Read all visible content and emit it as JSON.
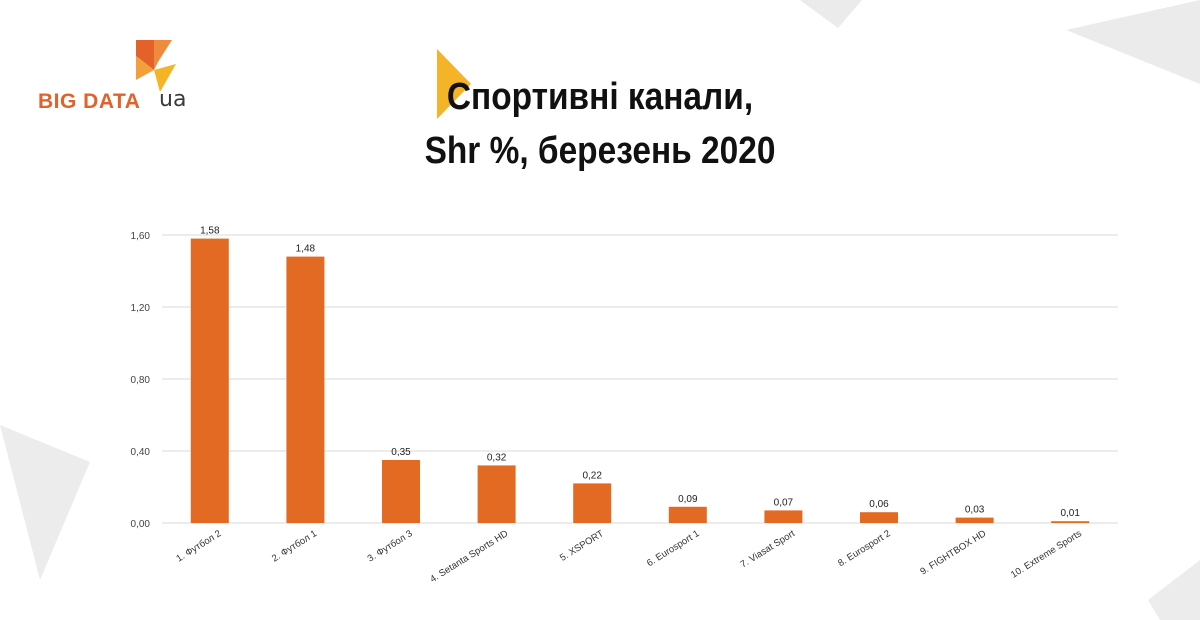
{
  "brand": {
    "name": "BIG DATA",
    "suffix": "ua"
  },
  "colors": {
    "bar": "#e26a22",
    "brand_orange": "#e2622a",
    "accent_yellow": "#f5b427",
    "grid": "#d9d9d9",
    "decor": "#e9e9e9"
  },
  "chart_data": {
    "type": "bar",
    "title": [
      "Спортивні канали,",
      "Shr %, березень 2020"
    ],
    "categories": [
      "1. Футбол 2",
      "2. Футбол 1",
      "3. Футбол 3",
      "4. Setanta Sports HD",
      "5. XSPORT",
      "6. Eurosport 1",
      "7. Viasat Sport",
      "8. Eurosport 2",
      "9. FIGHTBOX HD",
      "10. Extreme Sports"
    ],
    "values": [
      1.58,
      1.48,
      0.35,
      0.32,
      0.22,
      0.09,
      0.07,
      0.06,
      0.03,
      0.01
    ],
    "value_labels": [
      "1,58",
      "1,48",
      "0,35",
      "0,32",
      "0,22",
      "0,09",
      "0,07",
      "0,06",
      "0,03",
      "0,01"
    ],
    "y_ticks": [
      0,
      0.4,
      0.8,
      1.2,
      1.6
    ],
    "y_tick_labels": [
      "0,00",
      "0,40",
      "0,80",
      "1,20",
      "1,60"
    ],
    "ylim": [
      0,
      1.6
    ],
    "xlabel": "",
    "ylabel": "",
    "grid": true,
    "legend": "none"
  }
}
